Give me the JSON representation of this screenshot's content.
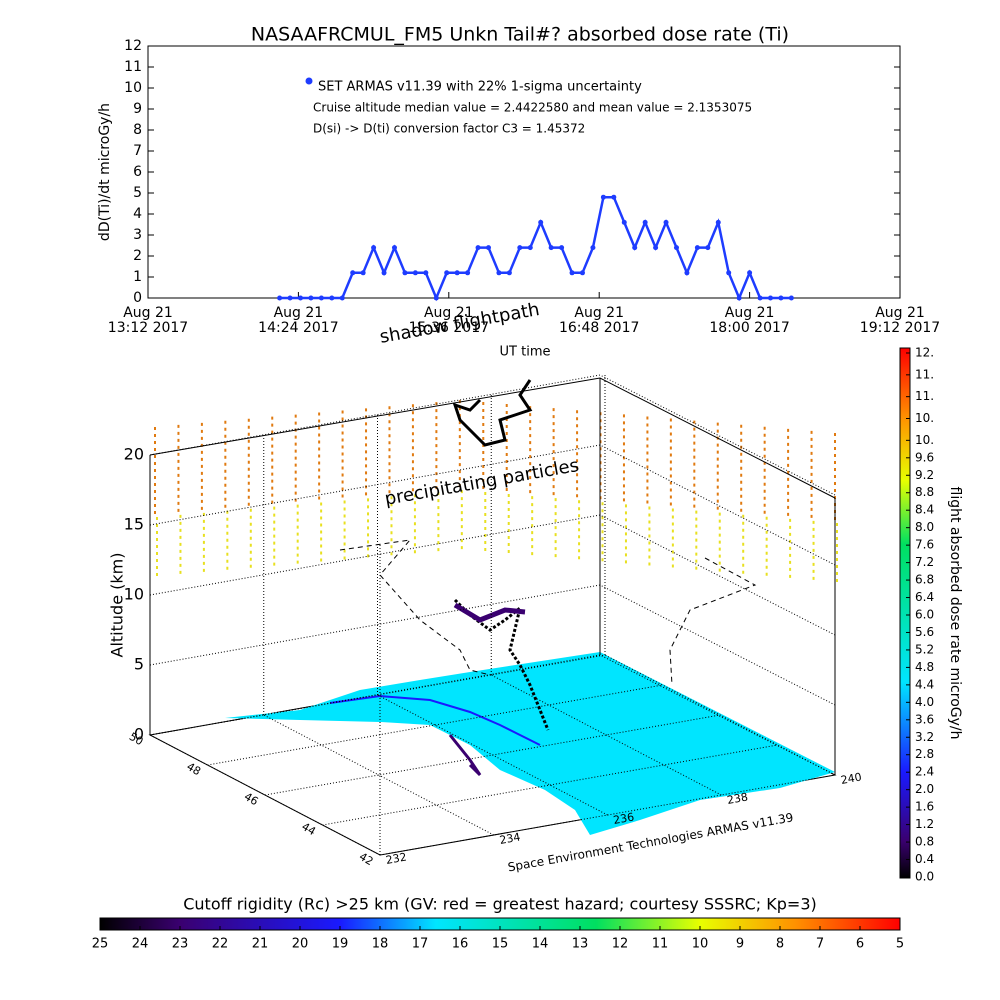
{
  "chart_data": [
    {
      "type": "line",
      "title": "NASAAFRCMUL_FM5 Unkn Tail#? absorbed dose rate (Ti)",
      "ylabel": "dD(Ti)/dt microGy/h",
      "xlabel": "UT time",
      "x": [
        "2017-08-21 14:15",
        "2017-08-21 14:20",
        "2017-08-21 14:25",
        "2017-08-21 14:30",
        "2017-08-21 14:35",
        "2017-08-21 14:40",
        "2017-08-21 14:45",
        "2017-08-21 14:50",
        "2017-08-21 14:55",
        "2017-08-21 15:00",
        "2017-08-21 15:05",
        "2017-08-21 15:10",
        "2017-08-21 15:15",
        "2017-08-21 15:20",
        "2017-08-21 15:25",
        "2017-08-21 15:30",
        "2017-08-21 15:35",
        "2017-08-21 15:40",
        "2017-08-21 15:45",
        "2017-08-21 15:50",
        "2017-08-21 15:55",
        "2017-08-21 16:00",
        "2017-08-21 16:05",
        "2017-08-21 16:10",
        "2017-08-21 16:15",
        "2017-08-21 16:20",
        "2017-08-21 16:25",
        "2017-08-21 16:30",
        "2017-08-21 16:35",
        "2017-08-21 16:40",
        "2017-08-21 16:45",
        "2017-08-21 16:50",
        "2017-08-21 16:55",
        "2017-08-21 17:00",
        "2017-08-21 17:05",
        "2017-08-21 17:10",
        "2017-08-21 17:15",
        "2017-08-21 17:20",
        "2017-08-21 17:25",
        "2017-08-21 17:30",
        "2017-08-21 17:35",
        "2017-08-21 17:40",
        "2017-08-21 17:45",
        "2017-08-21 17:50",
        "2017-08-21 17:55",
        "2017-08-21 18:00",
        "2017-08-21 18:05",
        "2017-08-21 18:10",
        "2017-08-21 18:15",
        "2017-08-21 18:20"
      ],
      "series": [
        {
          "name": "SET ARMAS v11.39 with 22% 1-sigma uncertainty",
          "color": "#1e3cff",
          "values": [
            0,
            0,
            0,
            0,
            0,
            0,
            0,
            1.2,
            1.2,
            2.4,
            1.2,
            2.4,
            1.2,
            1.2,
            1.2,
            0,
            1.2,
            1.2,
            1.2,
            2.4,
            2.4,
            1.2,
            1.2,
            2.4,
            2.4,
            3.6,
            2.4,
            2.4,
            1.2,
            1.2,
            2.4,
            4.8,
            4.8,
            3.6,
            2.4,
            3.6,
            2.4,
            3.6,
            2.4,
            1.2,
            2.4,
            2.4,
            3.6,
            1.2,
            0,
            1.2,
            0,
            0,
            0,
            0
          ]
        }
      ],
      "annotations": [
        "Cruise altitude median value = 2.4422580 and mean value = 2.1353075",
        "D(si) -> D(ti) conversion factor C3 = 1.45372"
      ],
      "xlim": [
        "2017-08-21 13:12",
        "2017-08-21 19:12"
      ],
      "xticks": [
        {
          "value": "2017-08-21 13:12",
          "label": "Aug 21\n13:12 2017"
        },
        {
          "value": "2017-08-21 14:24",
          "label": "Aug 21\n14:24 2017"
        },
        {
          "value": "2017-08-21 15:36",
          "label": "Aug 21\n15:36 2017"
        },
        {
          "value": "2017-08-21 16:48",
          "label": "Aug 21\n16:48 2017"
        },
        {
          "value": "2017-08-21 18:00",
          "label": "Aug 21\n18:00 2017"
        },
        {
          "value": "2017-08-21 19:12",
          "label": "Aug 21\n19:12 2017"
        }
      ],
      "ylim": [
        0,
        12
      ],
      "yticks": [
        0,
        1,
        2,
        3,
        4,
        5,
        6,
        7,
        8,
        9,
        10,
        11,
        12
      ]
    },
    {
      "type": "surface3d",
      "zlabel": "Altitude (km)",
      "zlim": [
        0,
        20
      ],
      "zticks": [
        0,
        5,
        10,
        15,
        20
      ],
      "ylim": [
        42,
        50
      ],
      "yticks": [
        50,
        48,
        46,
        44,
        42
      ],
      "xlim": [
        232,
        240
      ],
      "xticks": [
        232,
        234,
        236,
        238,
        240
      ],
      "annotations": [
        "shadow flightpath",
        "precipitating particles",
        "Space Environment Technologies ARMAS v11.39"
      ],
      "dose_colorbar": {
        "title": "flight absorbed dose rate microGy/h",
        "lim": [
          0,
          12
        ],
        "ticks": [
          {
            "value": 0,
            "label": "0.0"
          },
          0.4,
          0.8,
          1.2,
          1.6,
          {
            "value": 2,
            "label": "2.0"
          },
          2.4,
          2.8,
          3.2,
          3.6,
          {
            "value": 4,
            "label": "4.0"
          },
          4.4,
          4.8,
          5.2,
          5.6,
          {
            "value": 6,
            "label": "6.0"
          },
          6.4,
          6.8,
          7.2,
          7.6,
          {
            "value": 8,
            "label": "8.0"
          },
          8.4,
          8.8,
          9.2,
          9.6,
          {
            "value": 10,
            "label": "10."
          },
          {
            "value": 10.5,
            "label": "10."
          },
          {
            "value": 11,
            "label": "11."
          },
          {
            "value": 11.5,
            "label": "11."
          },
          {
            "value": 12,
            "label": "12."
          }
        ]
      },
      "rigidity_colorbar": {
        "title": "Cutoff rigidity (Rc) >25 km (GV: red = greatest hazard; courtesy SSSRC; Kp=3)",
        "lim": [
          25,
          5
        ],
        "ticks": [
          25,
          24,
          23,
          22,
          21,
          20,
          19,
          18,
          17,
          16,
          15,
          14,
          13,
          12,
          11,
          10,
          9,
          8,
          7,
          6,
          5
        ]
      }
    }
  ]
}
